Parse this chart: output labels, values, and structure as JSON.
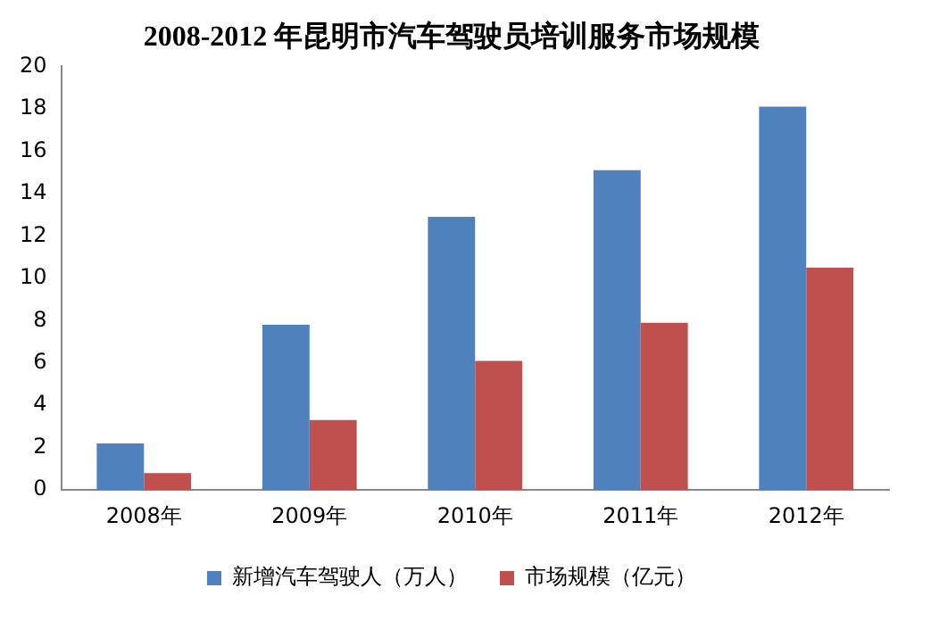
{
  "chart_data": {
    "type": "bar",
    "title": "2008-2012 年昆明市汽车驾驶员培训服务市场规模",
    "categories": [
      "2008年",
      "2009年",
      "2010年",
      "2011年",
      "2012年"
    ],
    "series": [
      {
        "name": "新增汽车驾驶人（万人）",
        "color": "#4f81bd",
        "values": [
          2.2,
          7.8,
          12.9,
          15.1,
          18.1
        ]
      },
      {
        "name": "市场规模（亿元）",
        "color": "#c0504d",
        "values": [
          0.8,
          3.3,
          6.1,
          7.9,
          10.5
        ]
      }
    ],
    "ylim": [
      0,
      20
    ],
    "yticks": [
      0,
      2,
      4,
      6,
      8,
      10,
      12,
      14,
      16,
      18,
      20
    ],
    "grid": false,
    "legend": "bottom"
  }
}
